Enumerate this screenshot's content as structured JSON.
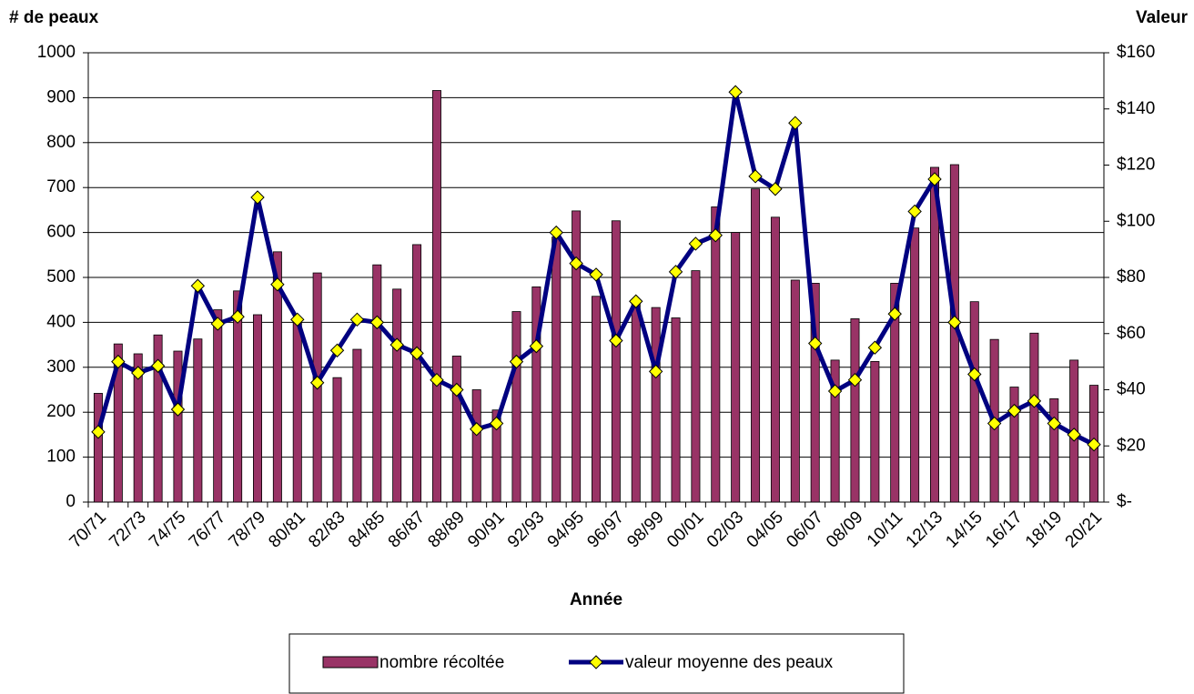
{
  "chart_data": {
    "type": "bar-line",
    "y_label": "# de peaux",
    "y2_label": "Valeur",
    "x_label": "Année",
    "categories": [
      "70/71",
      null,
      "72/73",
      null,
      "74/75",
      null,
      "76/77",
      null,
      "78/79",
      null,
      "80/81",
      null,
      "82/83",
      null,
      "84/85",
      null,
      "86/87",
      null,
      "88/89",
      null,
      "90/91",
      null,
      "92/93",
      null,
      "94/95",
      null,
      "96/97",
      null,
      "98/99",
      null,
      "00/01",
      null,
      "02/03",
      null,
      "04/05",
      null,
      "06/07",
      null,
      "08/09",
      null,
      "10/11",
      null,
      "12/13",
      null,
      "14/15",
      null,
      "16/17",
      null,
      "18/19",
      null,
      "20/21"
    ],
    "series": [
      {
        "name": "nombre récoltée",
        "type": "bar",
        "color": "#993366",
        "values": [
          242,
          352,
          330,
          372,
          336,
          363,
          428,
          470,
          417,
          557,
          410,
          510,
          277,
          340,
          528,
          474,
          573,
          916,
          325,
          250,
          205,
          424,
          479,
          590,
          648,
          458,
          626,
          445,
          433,
          410,
          515,
          657,
          600,
          697,
          634,
          494,
          487,
          316,
          408,
          313,
          487,
          610,
          745,
          751,
          446,
          362,
          256,
          376,
          230,
          316,
          260
        ]
      },
      {
        "name": "valeur moyenne des peaux",
        "type": "line",
        "axis": "y2",
        "color": "#000080",
        "marker_color": "#ffff00",
        "values": [
          25,
          50,
          46,
          48.5,
          33,
          77,
          63.5,
          66,
          108.5,
          77.5,
          65,
          42.5,
          54,
          65,
          64,
          56,
          53,
          43.5,
          40,
          26,
          28,
          50,
          55.5,
          96,
          85,
          81,
          57.5,
          71.5,
          46.5,
          82,
          92,
          95,
          146,
          116,
          111.5,
          135,
          56.5,
          39.5,
          43.5,
          55,
          67,
          103.5,
          115,
          64,
          45.5,
          28,
          32.5,
          36,
          28,
          24,
          20.5
        ]
      }
    ],
    "ylim": [
      0,
      1000
    ],
    "yticks": [
      0,
      100,
      200,
      300,
      400,
      500,
      600,
      700,
      800,
      900,
      1000
    ],
    "y2lim": [
      0,
      160
    ],
    "y2ticks": [
      {
        "value": 0,
        "label": "$-"
      },
      {
        "value": 20,
        "label": "$20"
      },
      {
        "value": 40,
        "label": "$40"
      },
      {
        "value": 60,
        "label": "$60"
      },
      {
        "value": 80,
        "label": "$80"
      },
      {
        "value": 100,
        "label": "$100"
      },
      {
        "value": 120,
        "label": "$120"
      },
      {
        "value": 140,
        "label": "$140"
      },
      {
        "value": 160,
        "label": "$160"
      }
    ],
    "grid": true,
    "legend": "bottom"
  }
}
